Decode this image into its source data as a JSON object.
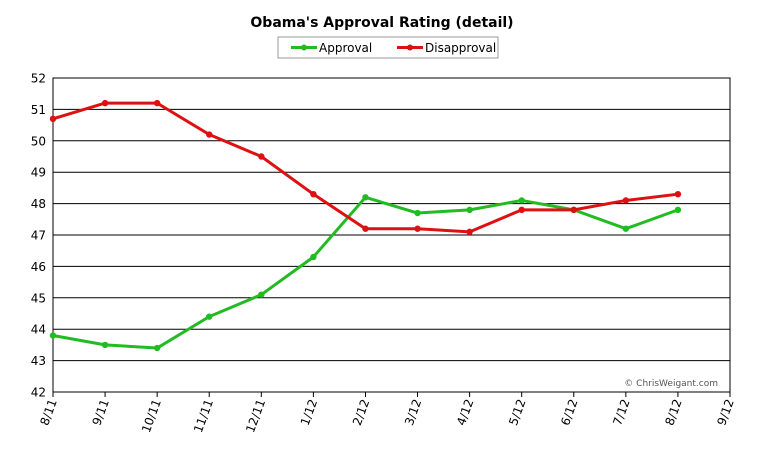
{
  "chart_data": {
    "type": "line",
    "title": "Obama's Approval Rating (detail)",
    "xlabel": "",
    "ylabel": "",
    "categories": [
      "8/11",
      "9/11",
      "10/11",
      "11/11",
      "12/11",
      "1/12",
      "2/12",
      "3/12",
      "4/12",
      "5/12",
      "6/12",
      "7/12",
      "8/12",
      "9/12"
    ],
    "ylim": [
      42,
      52
    ],
    "yticks": [
      42,
      43,
      44,
      45,
      46,
      47,
      48,
      49,
      50,
      51,
      52
    ],
    "grid": "horizontal",
    "legend_position": "top-center",
    "series": [
      {
        "name": "Approval",
        "color": "#22bb22",
        "values": [
          43.8,
          43.5,
          43.4,
          44.4,
          45.1,
          46.3,
          48.2,
          47.7,
          47.8,
          48.1,
          47.8,
          47.2,
          47.8,
          null
        ]
      },
      {
        "name": "Disapproval",
        "color": "#dd1111",
        "values": [
          50.7,
          51.2,
          51.2,
          50.2,
          49.5,
          48.3,
          47.2,
          47.2,
          47.1,
          47.8,
          47.8,
          48.1,
          48.3,
          null
        ]
      }
    ],
    "credit": "© ChrisWeigant.com"
  }
}
